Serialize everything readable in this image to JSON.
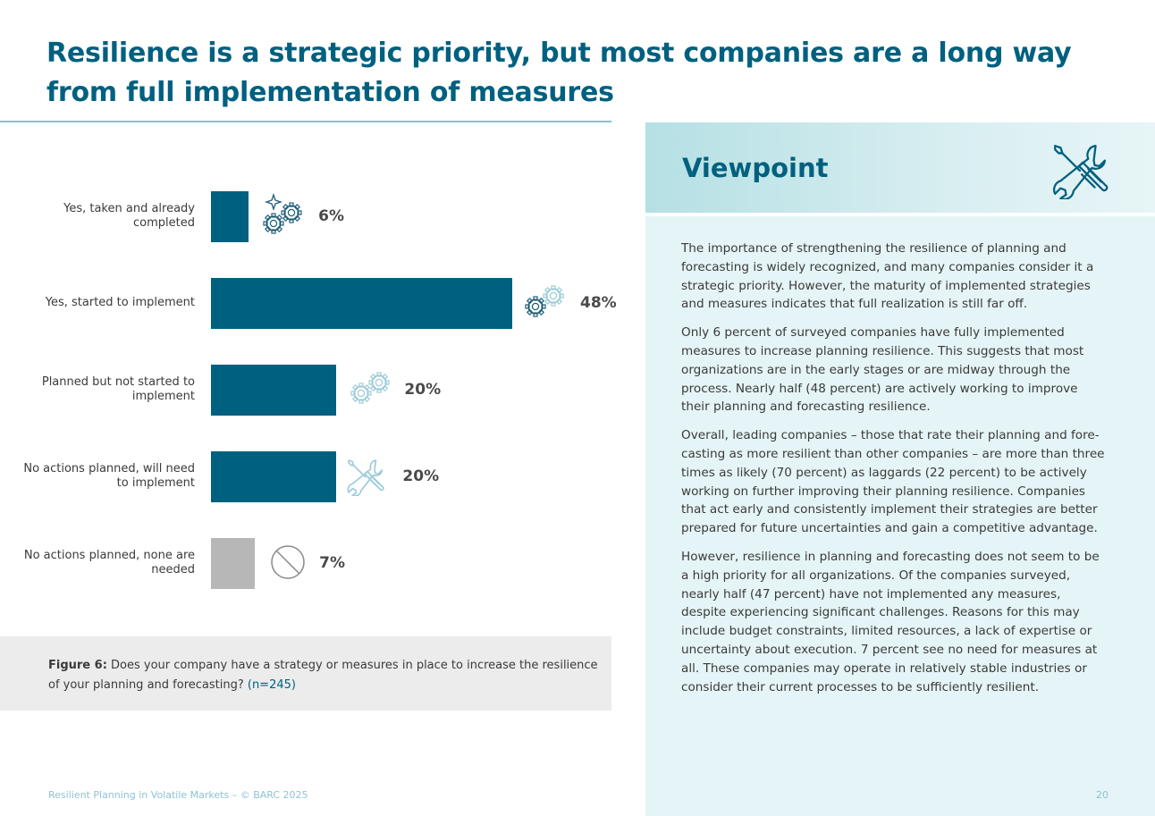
{
  "page": {
    "title": "Resilience is a strategic priority, but most companies are a long way from full implementation of measures",
    "footer": "Resilient Planning in Volatile Markets – © BARC 2025",
    "page_number": "20"
  },
  "chart_data": {
    "type": "bar",
    "orientation": "horizontal",
    "categories": [
      "Yes, taken and already completed",
      "Yes, started to implement",
      "Planned but not started to implement",
      "No actions planned, will need to implement",
      "No actions planned, none are needed"
    ],
    "values": [
      6,
      48,
      20,
      20,
      7
    ],
    "value_labels": [
      "6%",
      "48%",
      "20%",
      "20%",
      "7%"
    ],
    "unit": "%",
    "bar_colors": [
      "#00607f",
      "#00607f",
      "#00607f",
      "#00607f",
      "#b7b7b7"
    ],
    "icons": [
      "gears-sparkle-icon",
      "gears-half-icon",
      "gears-light-icon",
      "tools-icon",
      "prohibited-icon"
    ],
    "title": "",
    "xlabel": "",
    "ylabel": "",
    "grid": false
  },
  "caption": {
    "label": "Figure 6:",
    "text": " Does your company have a strategy or measures in place to increase the resilience of your planning and forecasting? ",
    "n": "(n=245)"
  },
  "viewpoint": {
    "title": "Viewpoint",
    "icon": "tools-icon",
    "paragraphs": [
      "The importance of strengthening the resilience of planning and forecasting is widely recognized, and many companies consider it a strategic priority. However, the maturity of implemented strategies and measures indicates that full realization is still far off.",
      "Only 6 percent of surveyed companies have fully implemented measures to increase planning resilience. This suggests that most organizations are in the early stages or are midway through the process. Nearly half (48 percent) are actively working to improve their planning and forecasting resilience.",
      "Overall, leading companies – those that rate their planning and fore­casting as more resilient than other companies – are more than three times as likely (70 percent) as laggards (22 percent) to be actively working on further improving their planning resilience. Companies that act early and consistently implement their strategies are better prepared for future uncertainties and gain a competitive advantage.",
      "However, resilience in planning and forecasting does not seem to be a high priority for all organizations. Of the companies surveyed, nearly half (47 percent) have not implemented any measures, despite expe­riencing significant challenges. Reasons for this may include budget constraints, limited resources, a lack of expertise or uncertainty about execution. 7 percent see no need for measures at all. These com­panies may operate in relatively stable industries or consider their current processes to be sufficiently resilient."
    ]
  },
  "colors": {
    "primary": "#00607f",
    "neutral_bar": "#b7b7b7",
    "accent_light": "#7fc8cf",
    "panel_bg": "#e5f4f6"
  }
}
